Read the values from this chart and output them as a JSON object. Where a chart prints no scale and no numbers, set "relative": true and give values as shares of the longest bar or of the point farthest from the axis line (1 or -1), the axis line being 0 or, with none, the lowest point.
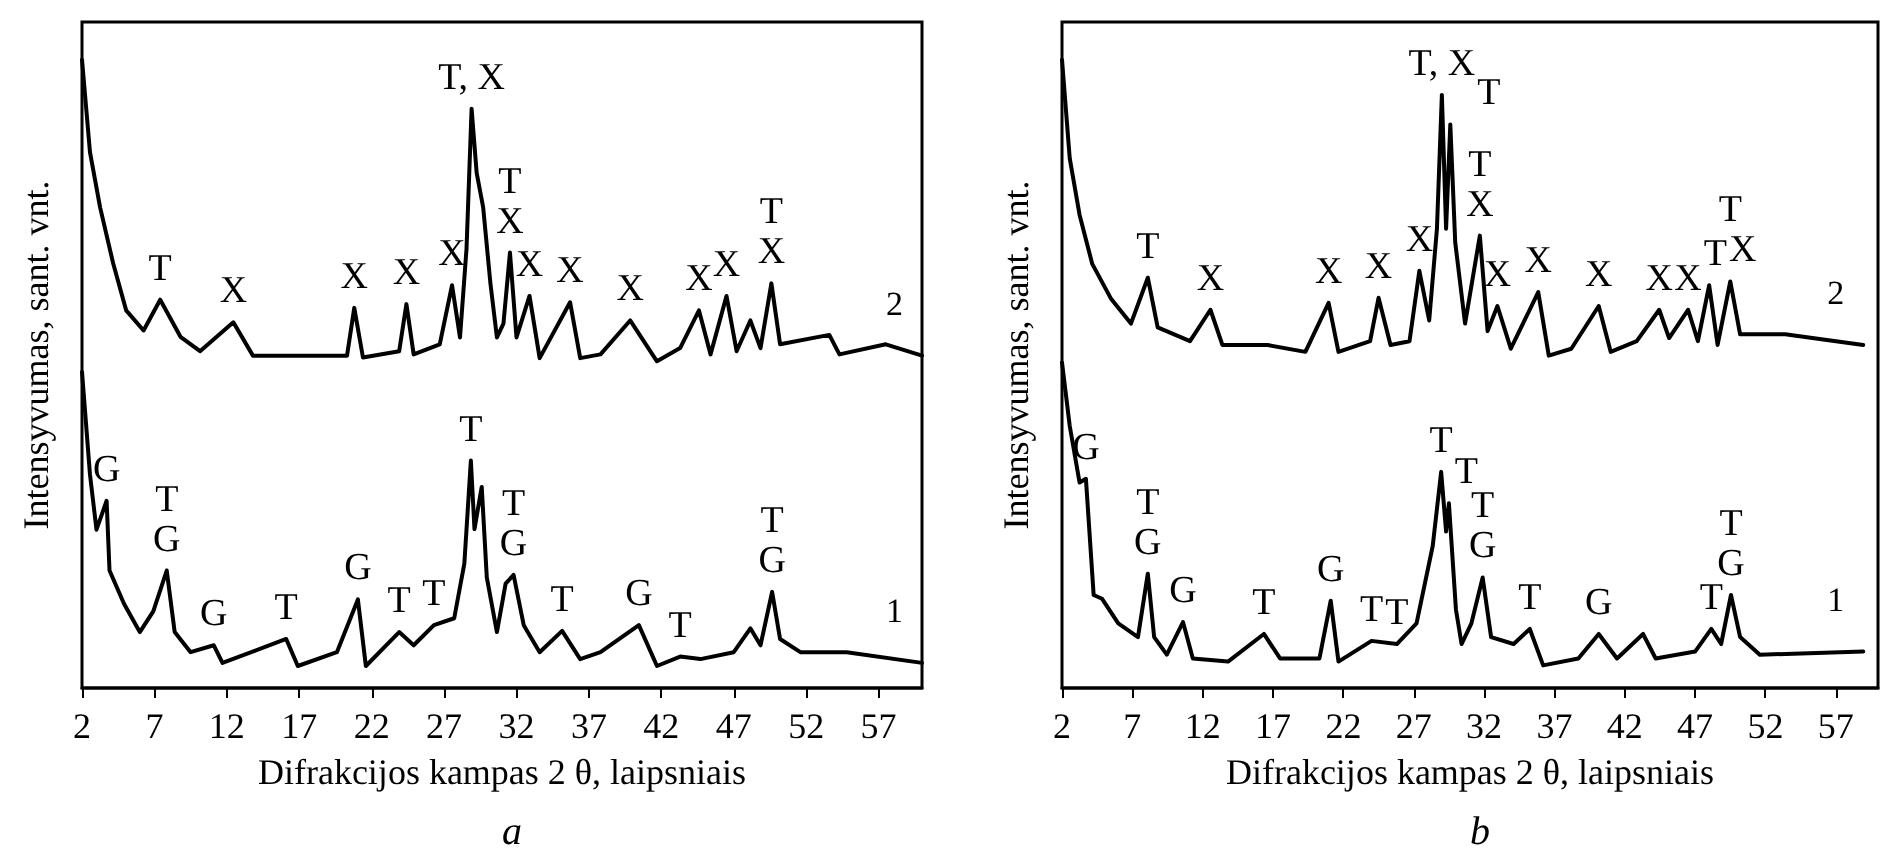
{
  "chart_data": [
    {
      "type": "line",
      "title": "a",
      "xlabel": "Difrakcijos kampas 2 θ, laipsniais",
      "ylabel": "Intensyvumas, sant. vnt.",
      "relative": true,
      "xlim": [
        2,
        60
      ],
      "xticks": [
        2,
        7,
        12,
        17,
        22,
        27,
        32,
        37,
        42,
        47,
        52,
        57
      ],
      "grid": false,
      "legend": false,
      "series": [
        {
          "name": "1",
          "color": "#000000",
          "x": [
            2,
            2.55,
            3.0,
            3.7,
            3.9,
            4.9,
            5.99,
            6.92,
            7.85,
            8.4,
            9.5,
            11.1,
            11.7,
            16.1,
            16.9,
            19.6,
            21.05,
            21.6,
            23.9,
            24.9,
            26.3,
            27.7,
            28.4,
            28.85,
            29.1,
            29.6,
            29.95,
            30.65,
            31.25,
            31.8,
            32.5,
            33.6,
            35.15,
            36.4,
            37.8,
            40.45,
            41.7,
            43.3,
            44.7,
            47.0,
            48.15,
            48.85,
            49.65,
            50.2,
            51.6,
            54.8,
            60
          ],
          "values": [
            0.503,
            0.34,
            0.252,
            0.298,
            0.187,
            0.134,
            0.089,
            0.122,
            0.187,
            0.089,
            0.057,
            0.068,
            0.04,
            0.078,
            0.035,
            0.057,
            0.141,
            0.035,
            0.089,
            0.068,
            0.1,
            0.111,
            0.198,
            0.362,
            0.253,
            0.32,
            0.176,
            0.089,
            0.166,
            0.18,
            0.1,
            0.057,
            0.091,
            0.046,
            0.057,
            0.1,
            0.035,
            0.05,
            0.046,
            0.057,
            0.095,
            0.068,
            0.153,
            0.078,
            0.057,
            0.057,
            0.04
          ]
        },
        {
          "name": "2",
          "color": "#000000",
          "x": [
            2,
            2.55,
            3.25,
            4.15,
            5.05,
            6.25,
            7.4,
            8.8,
            10.15,
            12.45,
            13.8,
            17.0,
            20.3,
            20.8,
            21.4,
            23.9,
            24.4,
            24.9,
            26.7,
            27.55,
            28.1,
            28.55,
            28.9,
            29.25,
            29.7,
            30.2,
            30.65,
            31.1,
            31.55,
            32.0,
            32.9,
            33.6,
            35.7,
            36.4,
            37.8,
            39.85,
            41.7,
            43.3,
            44.6,
            45.4,
            46.5,
            47.2,
            48.15,
            48.85,
            49.6,
            50.2,
            53.6,
            54.3,
            57.5,
            60
          ],
          "values": [
            1.0,
            0.853,
            0.765,
            0.676,
            0.601,
            0.569,
            0.618,
            0.559,
            0.536,
            0.582,
            0.529,
            0.529,
            0.529,
            0.605,
            0.526,
            0.536,
            0.611,
            0.531,
            0.547,
            0.641,
            0.558,
            0.699,
            0.922,
            0.82,
            0.765,
            0.644,
            0.558,
            0.58,
            0.693,
            0.558,
            0.624,
            0.525,
            0.614,
            0.525,
            0.531,
            0.585,
            0.52,
            0.541,
            0.601,
            0.531,
            0.624,
            0.536,
            0.585,
            0.541,
            0.644,
            0.547,
            0.562,
            0.531,
            0.547,
            0.529
          ]
        }
      ],
      "annotations": [
        {
          "text": "T",
          "x": 7.4,
          "y": 0.618
        },
        {
          "text": "X",
          "x": 12.45,
          "y": 0.582
        },
        {
          "text": "X",
          "x": 20.8,
          "y": 0.605
        },
        {
          "text": "X",
          "x": 24.4,
          "y": 0.611
        },
        {
          "text": "X",
          "x": 27.55,
          "y": 0.641
        },
        {
          "text": "T, X",
          "x": 28.9,
          "y": 0.922
        },
        {
          "text": "T",
          "x": 31.55,
          "y": 0.693
        },
        {
          "text": "X",
          "x": 31.55,
          "y": 0.693
        },
        {
          "text": "X",
          "x": 32.9,
          "y": 0.624
        },
        {
          "text": "X",
          "x": 35.7,
          "y": 0.614
        },
        {
          "text": "X",
          "x": 39.85,
          "y": 0.585
        },
        {
          "text": "X",
          "x": 44.6,
          "y": 0.601
        },
        {
          "text": "X",
          "x": 46.5,
          "y": 0.624
        },
        {
          "text": "T",
          "x": 49.6,
          "y": 0.644
        },
        {
          "text": "X",
          "x": 49.6,
          "y": 0.644
        },
        {
          "text": "G",
          "x": 3.7,
          "y": 0.298
        },
        {
          "text": "T",
          "x": 7.85,
          "y": 0.187
        },
        {
          "text": "G",
          "x": 7.85,
          "y": 0.187
        },
        {
          "text": "G",
          "x": 11.1,
          "y": 0.068
        },
        {
          "text": "T",
          "x": 16.1,
          "y": 0.078
        },
        {
          "text": "G",
          "x": 21.05,
          "y": 0.141
        },
        {
          "text": "T",
          "x": 23.9,
          "y": 0.089
        },
        {
          "text": "T",
          "x": 26.3,
          "y": 0.1
        },
        {
          "text": "T",
          "x": 28.85,
          "y": 0.362
        },
        {
          "text": "T",
          "x": 31.8,
          "y": 0.18
        },
        {
          "text": "G",
          "x": 31.8,
          "y": 0.18
        },
        {
          "text": "T",
          "x": 35.15,
          "y": 0.091
        },
        {
          "text": "G",
          "x": 40.45,
          "y": 0.1
        },
        {
          "text": "T",
          "x": 43.3,
          "y": 0.05
        },
        {
          "text": "T",
          "x": 49.65,
          "y": 0.153
        },
        {
          "text": "G",
          "x": 49.65,
          "y": 0.153
        }
      ]
    },
    {
      "type": "line",
      "title": "b",
      "xlabel": "Difrakcijos kampas 2 θ, laipsniais",
      "ylabel": "Intensyvumas, sant. vnt.",
      "relative": true,
      "xlim": [
        2,
        60
      ],
      "xticks": [
        2,
        7,
        12,
        17,
        22,
        27,
        32,
        37,
        42,
        47,
        52,
        57
      ],
      "grid": false,
      "legend": false,
      "series": [
        {
          "name": "1",
          "color": "#000000",
          "x": [
            2,
            2.55,
            3.25,
            3.7,
            4.25,
            4.85,
            6.0,
            7.4,
            8.1,
            8.55,
            9.45,
            10.6,
            11.3,
            13.8,
            16.35,
            17.5,
            20.3,
            21.1,
            21.65,
            24.0,
            25.8,
            27.2,
            28.35,
            28.95,
            29.3,
            29.5,
            30.0,
            30.4,
            31.1,
            31.9,
            32.5,
            34.1,
            35.25,
            36.2,
            38.7,
            40.15,
            41.45,
            43.3,
            44.2,
            47.0,
            48.15,
            48.85,
            49.55,
            50.2,
            51.6,
            58.95
          ],
          "values": [
            0.518,
            0.417,
            0.327,
            0.333,
            0.148,
            0.142,
            0.103,
            0.081,
            0.182,
            0.081,
            0.053,
            0.105,
            0.047,
            0.042,
            0.086,
            0.047,
            0.047,
            0.139,
            0.042,
            0.075,
            0.07,
            0.103,
            0.226,
            0.344,
            0.249,
            0.294,
            0.125,
            0.07,
            0.103,
            0.176,
            0.081,
            0.07,
            0.094,
            0.036,
            0.047,
            0.086,
            0.047,
            0.086,
            0.047,
            0.058,
            0.094,
            0.07,
            0.148,
            0.081,
            0.053,
            0.058
          ]
        },
        {
          "name": "2",
          "color": "#000000",
          "x": [
            2,
            2.55,
            3.25,
            4.15,
            5.5,
            6.9,
            8.1,
            8.8,
            11.1,
            12.55,
            13.4,
            16.6,
            19.3,
            20.95,
            21.65,
            23.9,
            24.5,
            25.35,
            26.7,
            27.4,
            28.1,
            28.65,
            29.0,
            29.3,
            29.6,
            29.95,
            30.65,
            31.7,
            32.25,
            32.95,
            33.9,
            35.85,
            36.6,
            38.2,
            40.15,
            41.0,
            42.85,
            44.45,
            45.15,
            46.5,
            47.2,
            48.0,
            48.6,
            49.5,
            50.2,
            53.4,
            58.95
          ],
          "values": [
            1.0,
            0.843,
            0.753,
            0.675,
            0.619,
            0.58,
            0.653,
            0.574,
            0.552,
            0.602,
            0.546,
            0.546,
            0.535,
            0.613,
            0.535,
            0.552,
            0.621,
            0.546,
            0.552,
            0.664,
            0.585,
            0.731,
            0.944,
            0.731,
            0.897,
            0.709,
            0.58,
            0.72,
            0.568,
            0.608,
            0.54,
            0.63,
            0.529,
            0.54,
            0.608,
            0.535,
            0.552,
            0.602,
            0.557,
            0.602,
            0.552,
            0.641,
            0.546,
            0.647,
            0.563,
            0.563,
            0.546
          ]
        }
      ],
      "annotations": [
        {
          "text": "T",
          "x": 8.1,
          "y": 0.653
        },
        {
          "text": "X",
          "x": 12.55,
          "y": 0.602
        },
        {
          "text": "X",
          "x": 20.95,
          "y": 0.613
        },
        {
          "text": "X",
          "x": 24.5,
          "y": 0.621
        },
        {
          "text": "X",
          "x": 27.4,
          "y": 0.664
        },
        {
          "text": "T, X",
          "x": 29.0,
          "y": 0.944
        },
        {
          "text": "T",
          "x": 29.6,
          "y": 0.897
        },
        {
          "text": "T",
          "x": 31.7,
          "y": 0.72
        },
        {
          "text": "X",
          "x": 31.7,
          "y": 0.72
        },
        {
          "text": "X",
          "x": 32.95,
          "y": 0.608
        },
        {
          "text": "X",
          "x": 35.85,
          "y": 0.63
        },
        {
          "text": "X",
          "x": 40.15,
          "y": 0.608
        },
        {
          "text": "X",
          "x": 44.45,
          "y": 0.602
        },
        {
          "text": "X",
          "x": 46.5,
          "y": 0.602
        },
        {
          "text": "T",
          "x": 48.0,
          "y": 0.641
        },
        {
          "text": "T",
          "x": 49.5,
          "y": 0.647
        },
        {
          "text": "X",
          "x": 49.5,
          "y": 0.647
        },
        {
          "text": "G",
          "x": 3.7,
          "y": 0.333
        },
        {
          "text": "T",
          "x": 8.1,
          "y": 0.182
        },
        {
          "text": "G",
          "x": 8.1,
          "y": 0.182
        },
        {
          "text": "G",
          "x": 10.6,
          "y": 0.105
        },
        {
          "text": "T",
          "x": 16.35,
          "y": 0.086
        },
        {
          "text": "G",
          "x": 21.1,
          "y": 0.139
        },
        {
          "text": "T",
          "x": 24.0,
          "y": 0.075
        },
        {
          "text": "T",
          "x": 25.8,
          "y": 0.07
        },
        {
          "text": "T",
          "x": 28.95,
          "y": 0.344
        },
        {
          "text": "T",
          "x": 29.5,
          "y": 0.294
        },
        {
          "text": "T",
          "x": 31.9,
          "y": 0.176
        },
        {
          "text": "G",
          "x": 31.9,
          "y": 0.176
        },
        {
          "text": "T",
          "x": 35.25,
          "y": 0.094
        },
        {
          "text": "G",
          "x": 40.15,
          "y": 0.086
        },
        {
          "text": "T",
          "x": 48.15,
          "y": 0.094
        },
        {
          "text": "T",
          "x": 49.55,
          "y": 0.148
        },
        {
          "text": "G",
          "x": 49.55,
          "y": 0.148
        }
      ]
    }
  ]
}
